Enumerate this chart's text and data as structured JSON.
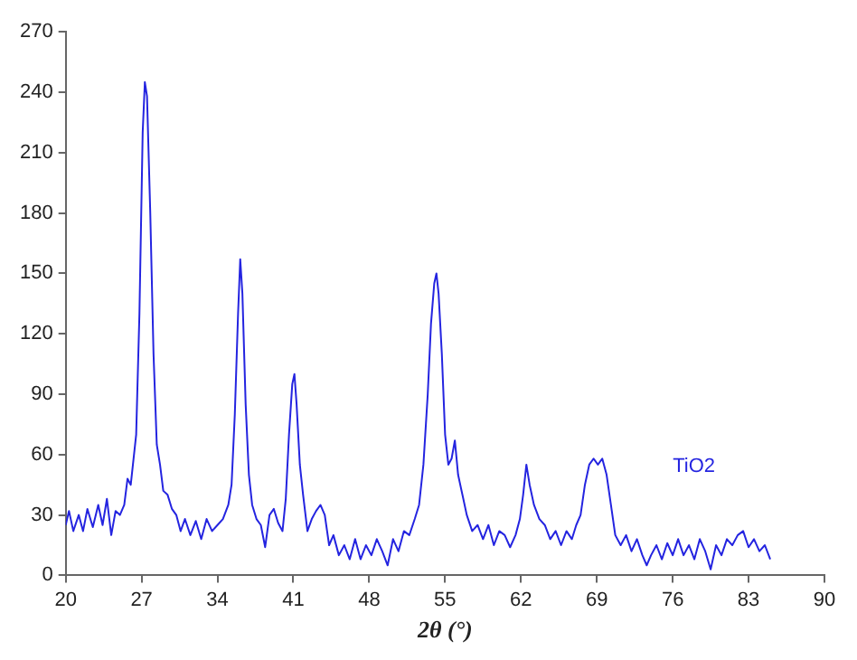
{
  "chart_data": {
    "type": "line",
    "xlabel": "2θ (°)",
    "xlim": [
      20,
      90
    ],
    "xticks": [
      20,
      27,
      34,
      41,
      48,
      55,
      62,
      69,
      76,
      83,
      90
    ],
    "ylim": [
      0,
      270
    ],
    "yticks": [
      0,
      30,
      60,
      90,
      120,
      150,
      180,
      210,
      240,
      270
    ],
    "grid": false,
    "legend": false,
    "marker": "none",
    "line_style": "solid",
    "series": [
      {
        "name": "TiO2",
        "color": "#2424e0",
        "x": [
          20,
          20.3,
          20.7,
          21.2,
          21.6,
          22,
          22.5,
          23,
          23.4,
          23.8,
          24.2,
          24.6,
          25,
          25.4,
          25.7,
          26,
          26.2,
          26.5,
          26.8,
          27.1,
          27.3,
          27.5,
          27.8,
          28.1,
          28.4,
          28.7,
          29,
          29.4,
          29.8,
          30.2,
          30.6,
          31,
          31.5,
          32,
          32.5,
          33,
          33.5,
          34,
          34.5,
          35,
          35.3,
          35.6,
          35.9,
          36.1,
          36.3,
          36.6,
          36.9,
          37.2,
          37.6,
          38,
          38.4,
          38.8,
          39.2,
          39.6,
          40,
          40.3,
          40.6,
          40.9,
          41.1,
          41.3,
          41.6,
          41.9,
          42.3,
          42.7,
          43.1,
          43.5,
          43.9,
          44.3,
          44.7,
          45.2,
          45.7,
          46.2,
          46.7,
          47.2,
          47.7,
          48.2,
          48.7,
          49.2,
          49.7,
          50.2,
          50.7,
          51.2,
          51.7,
          52.2,
          52.6,
          53,
          53.4,
          53.7,
          54,
          54.2,
          54.4,
          54.7,
          55,
          55.3,
          55.6,
          55.9,
          56.2,
          56.6,
          57,
          57.5,
          58,
          58.5,
          59,
          59.5,
          60,
          60.5,
          61,
          61.5,
          61.9,
          62.2,
          62.5,
          62.8,
          63.2,
          63.7,
          64.2,
          64.7,
          65.2,
          65.7,
          66.2,
          66.7,
          67.1,
          67.5,
          67.9,
          68.3,
          68.7,
          69.1,
          69.5,
          69.9,
          70.3,
          70.7,
          71.2,
          71.7,
          72.2,
          72.7,
          73.2,
          73.6,
          74,
          74.5,
          75,
          75.5,
          76,
          76.5,
          77,
          77.5,
          78,
          78.5,
          79,
          79.5,
          80,
          80.5,
          81,
          81.5,
          82,
          82.5,
          83,
          83.5,
          84,
          84.5,
          85
        ],
        "values": [
          25,
          32,
          22,
          30,
          22,
          33,
          24,
          35,
          25,
          38,
          20,
          32,
          30,
          35,
          48,
          45,
          55,
          70,
          130,
          220,
          245,
          238,
          180,
          110,
          65,
          55,
          42,
          40,
          33,
          30,
          22,
          28,
          20,
          27,
          18,
          28,
          22,
          25,
          28,
          35,
          45,
          80,
          130,
          157,
          140,
          85,
          50,
          35,
          28,
          25,
          14,
          30,
          33,
          26,
          22,
          38,
          70,
          95,
          100,
          85,
          55,
          40,
          22,
          28,
          32,
          35,
          30,
          15,
          20,
          10,
          15,
          8,
          18,
          8,
          15,
          10,
          18,
          12,
          5,
          18,
          12,
          22,
          20,
          28,
          35,
          55,
          90,
          125,
          145,
          150,
          140,
          110,
          70,
          55,
          58,
          67,
          50,
          40,
          30,
          22,
          25,
          18,
          25,
          15,
          22,
          20,
          14,
          20,
          28,
          40,
          55,
          45,
          35,
          28,
          25,
          18,
          22,
          15,
          22,
          18,
          25,
          30,
          45,
          55,
          58,
          55,
          58,
          50,
          35,
          20,
          15,
          20,
          12,
          18,
          10,
          5,
          10,
          15,
          8,
          16,
          10,
          18,
          10,
          15,
          8,
          18,
          12,
          3,
          15,
          10,
          18,
          15,
          20,
          22,
          14,
          18,
          12,
          15,
          8
        ]
      }
    ]
  }
}
